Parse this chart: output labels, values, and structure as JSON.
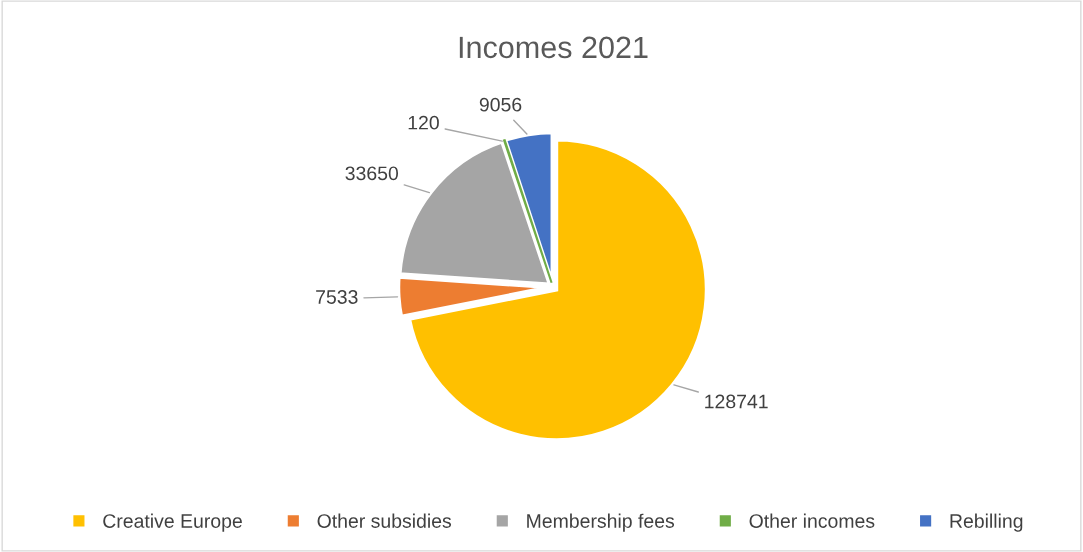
{
  "chart_data": {
    "type": "pie",
    "title": "Incomes 2021",
    "categories": [
      "Creative Europe",
      "Other subsidies",
      "Membership fees",
      "Other incomes",
      "Rebilling"
    ],
    "values": [
      128741,
      7533,
      33650,
      120,
      9056
    ],
    "colors": [
      "#ffc000",
      "#ed7d31",
      "#a5a5a5",
      "#70ad47",
      "#4472c4"
    ],
    "data_labels": true,
    "legend": "bottom"
  }
}
